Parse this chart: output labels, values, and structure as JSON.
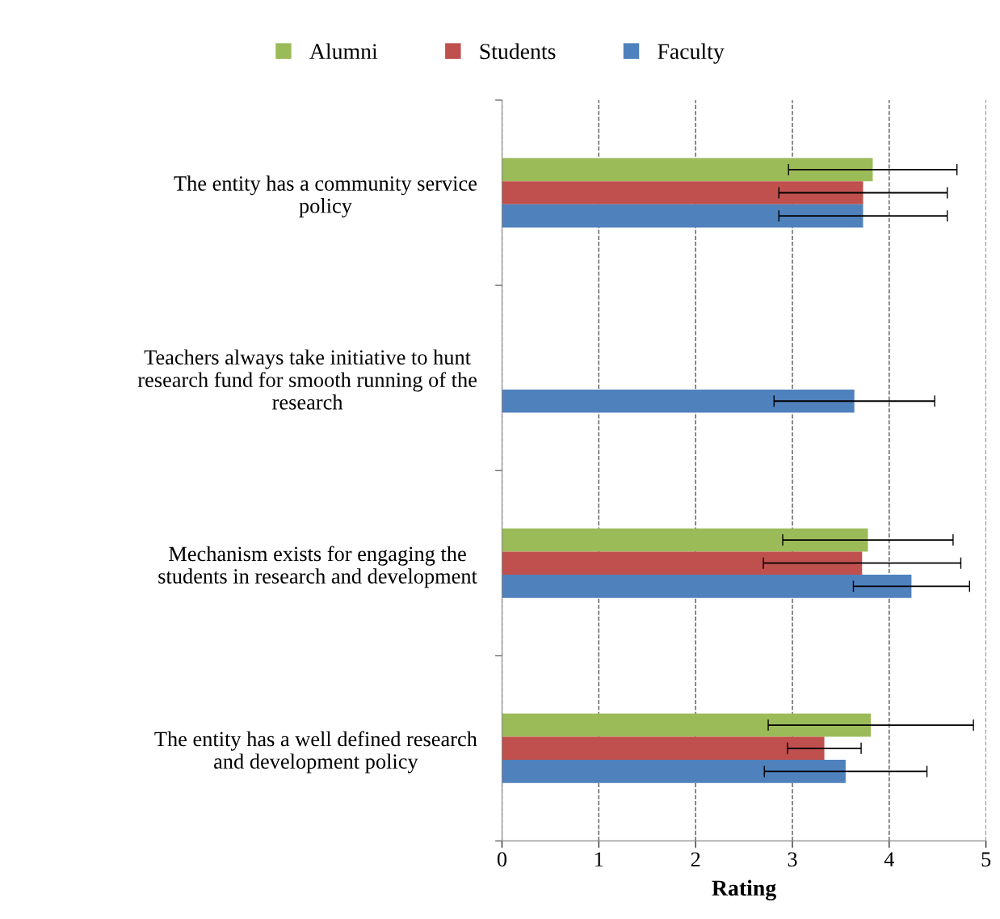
{
  "chart_data": {
    "type": "bar",
    "orientation": "horizontal",
    "xlabel": "Rating",
    "categories": [
      "The entity has a community service policy",
      "Teachers always take initiative to hunt research fund for smooth running of the research",
      "Mechanism exists for engaging the students in research and development",
      "The entity has a well defined research and development policy"
    ],
    "series": [
      {
        "name": "Alumni",
        "color": "#9bbb59",
        "values": [
          3.83,
          null,
          3.78,
          3.81
        ],
        "errors": [
          0.87,
          null,
          0.88,
          1.06
        ]
      },
      {
        "name": "Students",
        "color": "#c0504d",
        "values": [
          3.73,
          null,
          3.72,
          3.33
        ],
        "errors": [
          0.87,
          null,
          1.02,
          0.38
        ]
      },
      {
        "name": "Faculty",
        "color": "#4f81bd",
        "values": [
          3.73,
          3.64,
          4.23,
          3.55
        ],
        "errors": [
          0.87,
          0.83,
          0.6,
          0.84
        ]
      }
    ],
    "xlim": [
      0,
      5
    ],
    "xticks": [
      0,
      1,
      2,
      3,
      4,
      5
    ],
    "grid": "x",
    "legend": "top"
  }
}
